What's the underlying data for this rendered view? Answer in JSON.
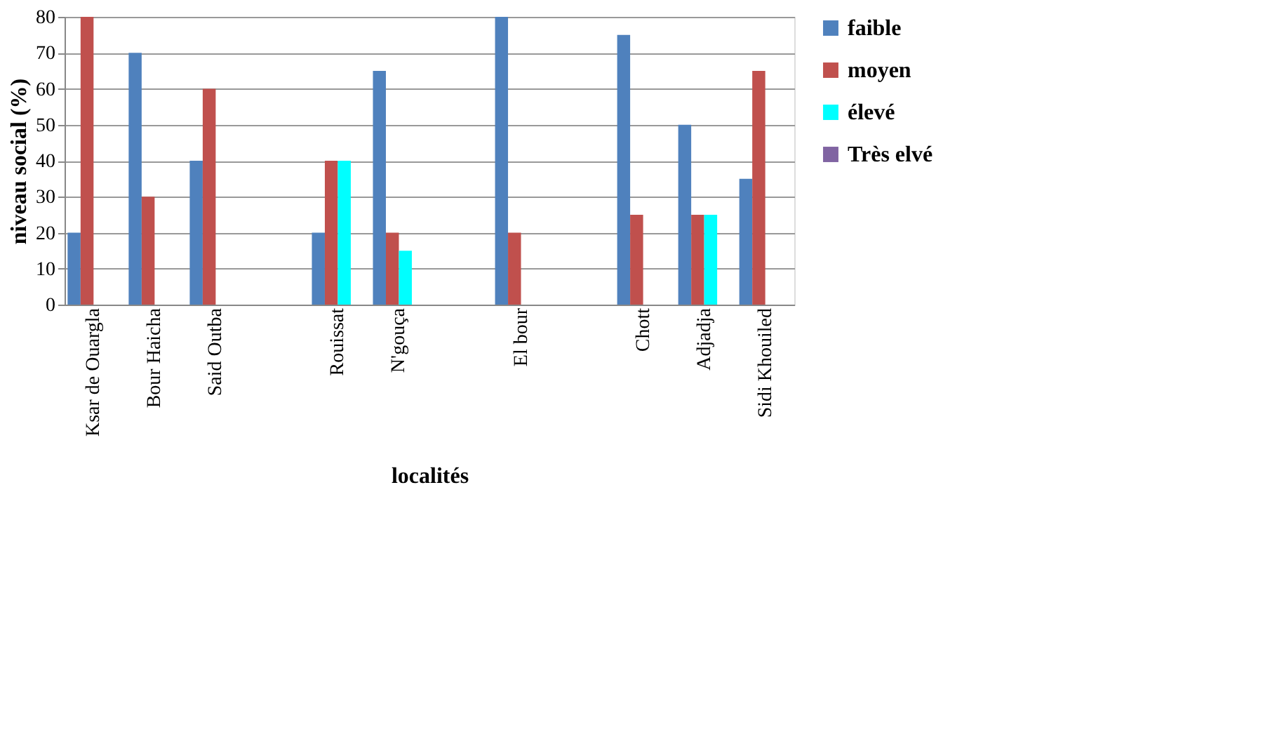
{
  "chart_data": {
    "type": "bar",
    "xlabel": "localités",
    "ylabel": "niveau social (%)",
    "categories": [
      "Ksar de Ouargla",
      "Bour Haicha",
      "Said Outba",
      null,
      "Rouissat",
      "N'gouça",
      null,
      "El bour",
      null,
      "Chott",
      "Adjadja",
      "Sidi Khouiled"
    ],
    "series": [
      {
        "name": "faible",
        "color": "#4f81bd",
        "values": [
          20,
          70,
          40,
          null,
          20,
          65,
          null,
          80,
          null,
          75,
          50,
          35
        ]
      },
      {
        "name": "moyen",
        "color": "#c0504d",
        "values": [
          80,
          30,
          60,
          null,
          40,
          20,
          null,
          20,
          null,
          25,
          25,
          65
        ]
      },
      {
        "name": "élevé",
        "color": "#00ffff",
        "values": [
          0,
          0,
          0,
          null,
          40,
          15,
          null,
          0,
          null,
          0,
          25,
          0
        ]
      },
      {
        "name": "Très elvé",
        "color": "#8064a2",
        "values": [
          0,
          0,
          0,
          null,
          0,
          0,
          null,
          0,
          null,
          0,
          0,
          0
        ]
      }
    ],
    "ylim": [
      0,
      80
    ],
    "yticks": [
      0,
      10,
      20,
      30,
      40,
      50,
      60,
      70,
      80
    ],
    "grid": "y",
    "legend": "right"
  }
}
